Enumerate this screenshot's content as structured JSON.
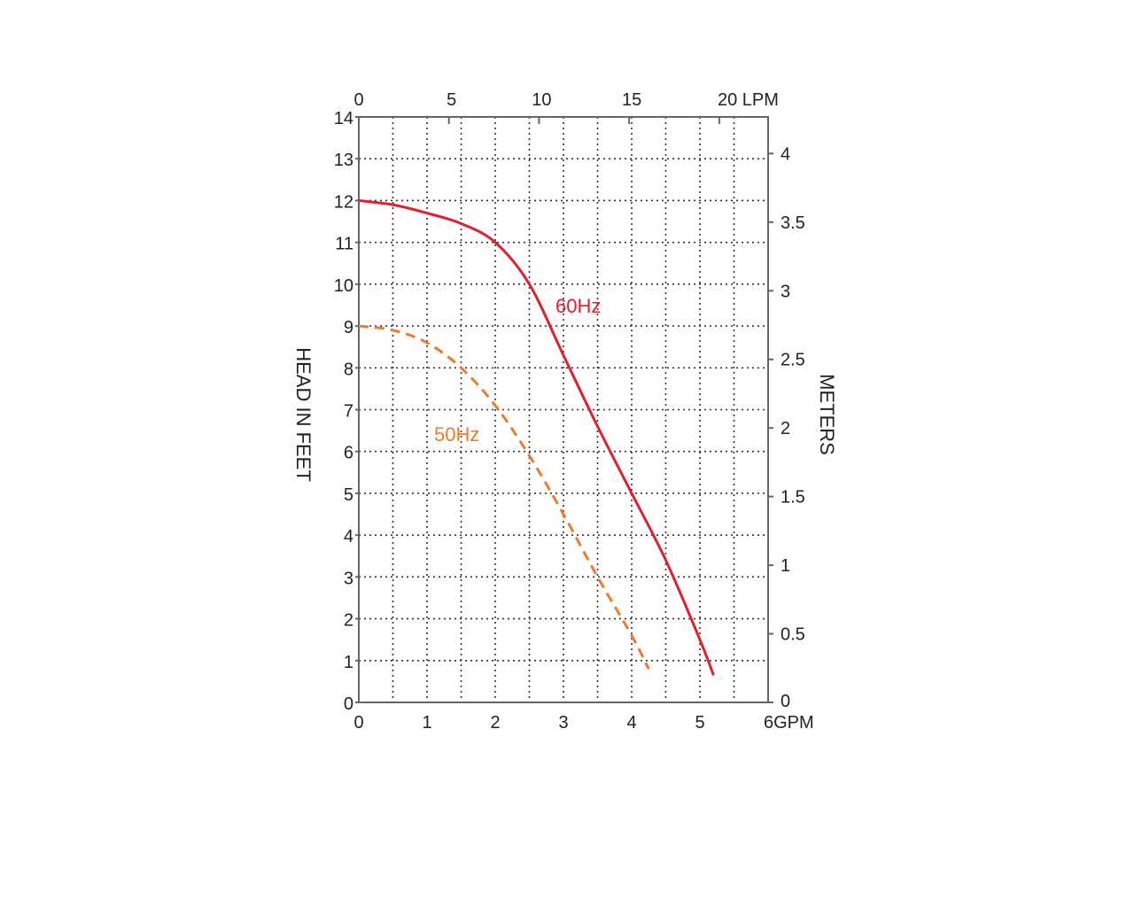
{
  "chart_data": {
    "type": "line",
    "title": "",
    "xlabel": "GPM",
    "x_bottom_unit": "6GPM",
    "x_top_unit": "20 LPM",
    "ylabel": "HEAD IN FEET",
    "y2label": "METERS",
    "xlim": [
      0,
      6
    ],
    "ylim": [
      0,
      14
    ],
    "grid": true,
    "x_ticks": [
      "0",
      "1",
      "2",
      "3",
      "4",
      "5"
    ],
    "x_tick_values": [
      0,
      1,
      2,
      3,
      4,
      5
    ],
    "y_ticks": [
      "0",
      "1",
      "2",
      "3",
      "4",
      "5",
      "6",
      "7",
      "8",
      "9",
      "10",
      "11",
      "12",
      "13",
      "14"
    ],
    "y_tick_values": [
      0,
      1,
      2,
      3,
      4,
      5,
      6,
      7,
      8,
      9,
      10,
      11,
      12,
      13,
      14
    ],
    "top_ticks_lpm": [
      "0",
      "5",
      "10",
      "15"
    ],
    "top_tick_values_lpm": [
      0,
      5,
      10,
      15,
      20
    ],
    "right_ticks_m": [
      "0",
      "0.5",
      "1",
      "1.5",
      "2",
      "2.5",
      "3",
      "3.5",
      "4"
    ],
    "right_tick_values_m": [
      0,
      0.5,
      1,
      1.5,
      2,
      2.5,
      3,
      3.5,
      4
    ],
    "series": [
      {
        "name": "60Hz",
        "color": "#e0202e",
        "style": "solid",
        "x": [
          0,
          0.5,
          1,
          1.5,
          2,
          2.5,
          3,
          3.5,
          4,
          4.5,
          5,
          5.2
        ],
        "y": [
          12,
          11.9,
          11.7,
          11.45,
          11,
          10,
          8.3,
          6.6,
          5,
          3.4,
          1.5,
          0.65
        ]
      },
      {
        "name": "50Hz",
        "color": "#ee7a2e",
        "style": "dashed",
        "x": [
          0,
          0.5,
          1,
          1.5,
          2,
          2.5,
          3,
          3.5,
          4,
          4.25
        ],
        "y": [
          9,
          8.9,
          8.6,
          8.0,
          7.1,
          5.9,
          4.5,
          3.0,
          1.6,
          0.8
        ]
      }
    ]
  }
}
